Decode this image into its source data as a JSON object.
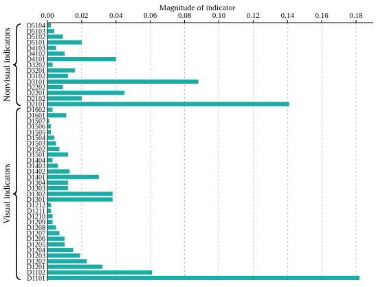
{
  "chart_data": {
    "type": "bar",
    "orientation": "horizontal",
    "xlabel": "Magnitude of indicator",
    "xlim": [
      0,
      0.19
    ],
    "xticks": [
      "0.00",
      "0.02",
      "0.04",
      "0.06",
      "0.08",
      "0.10",
      "0.12",
      "0.14",
      "0.16",
      "0.18"
    ],
    "grid": "vertical dashed",
    "bar_color": "#1aada6",
    "groups": [
      {
        "label": "Nonvisual indicators",
        "from": "D5104",
        "to": "D2101"
      },
      {
        "label": "Visual indicators",
        "from": "D1602",
        "to": "D1101"
      }
    ],
    "categories": [
      "D5104",
      "D5103",
      "D5102",
      "D5101",
      "D4103",
      "D4102",
      "D4101",
      "D3202",
      "D3201",
      "D3102",
      "D3101",
      "D2202",
      "D2201",
      "D2102",
      "D2101",
      "D1602",
      "D1601",
      "D1507",
      "D1506",
      "D1505",
      "D1504",
      "D1503",
      "D1502",
      "D1501",
      "D1404",
      "D1403",
      "D1402",
      "D1401",
      "D1304",
      "D1303",
      "D1302",
      "D1301",
      "D1212",
      "D1211",
      "D1210",
      "D1209",
      "D1208",
      "D1207",
      "D1206",
      "D1205",
      "D1204",
      "D1203",
      "D1202",
      "D1201",
      "D1102",
      "D1101"
    ],
    "values": [
      0.002,
      0.004,
      0.009,
      0.02,
      0.005,
      0.01,
      0.04,
      0.003,
      0.016,
      0.012,
      0.088,
      0.009,
      0.045,
      0.02,
      0.141,
      0.003,
      0.011,
      0.001,
      0.002,
      0.002,
      0.004,
      0.005,
      0.007,
      0.012,
      0.003,
      0.006,
      0.013,
      0.03,
      0.012,
      0.012,
      0.038,
      0.038,
      0.002,
      0.002,
      0.003,
      0.003,
      0.005,
      0.007,
      0.01,
      0.01,
      0.015,
      0.019,
      0.023,
      0.032,
      0.061,
      0.182
    ]
  }
}
